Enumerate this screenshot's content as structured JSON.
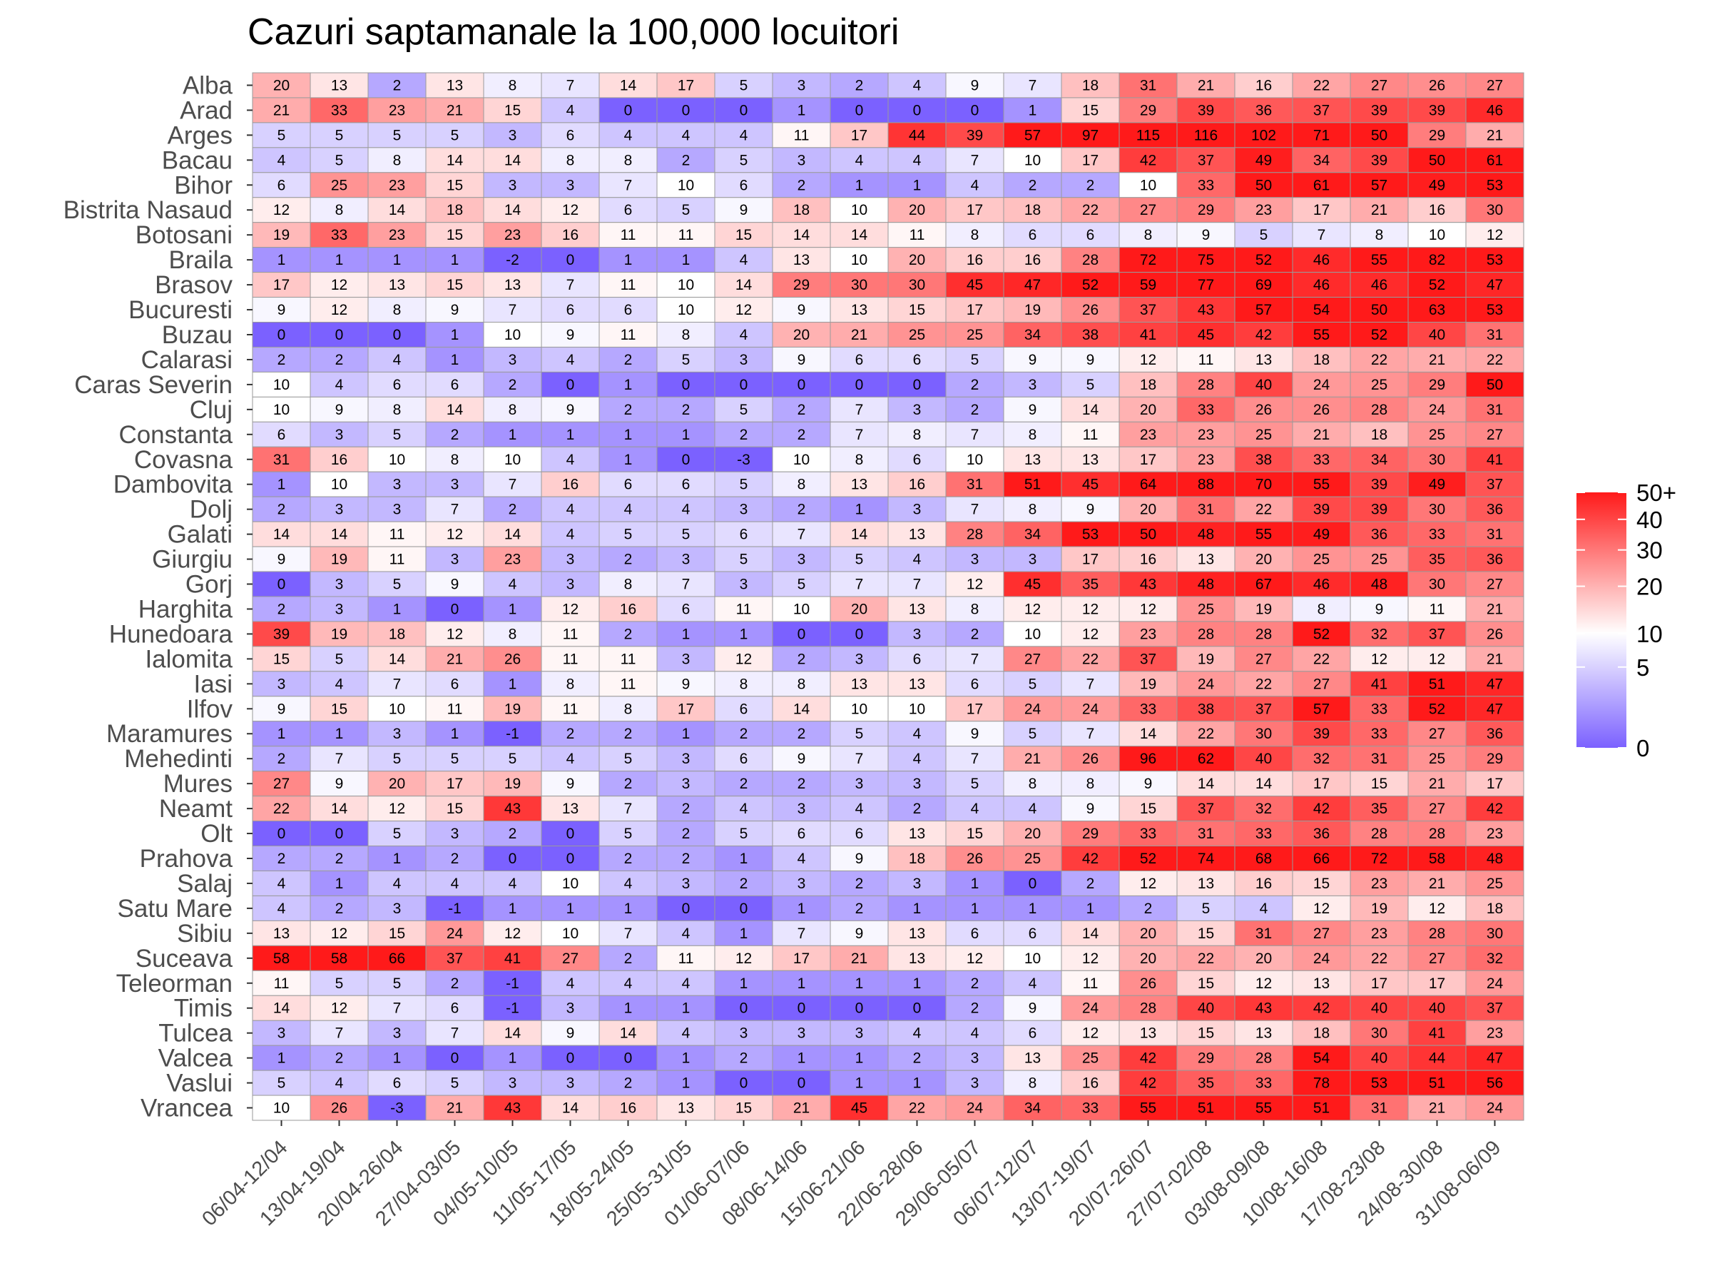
{
  "chart_data": {
    "type": "heatmap",
    "title": "Cazuri saptamanale la 100,000 locuitori",
    "xlabel": "",
    "ylabel": "",
    "x": [
      "06/04-12/04",
      "13/04-19/04",
      "20/04-26/04",
      "27/04-03/05",
      "04/05-10/05",
      "11/05-17/05",
      "18/05-24/05",
      "25/05-31/05",
      "01/06-07/06",
      "08/06-14/06",
      "15/06-21/06",
      "22/06-28/06",
      "29/06-05/07",
      "06/07-12/07",
      "13/07-19/07",
      "20/07-26/07",
      "27/07-02/08",
      "03/08-09/08",
      "10/08-16/08",
      "17/08-23/08",
      "24/08-30/08",
      "31/08-06/09"
    ],
    "y": [
      "Alba",
      "Arad",
      "Arges",
      "Bacau",
      "Bihor",
      "Bistrita Nasaud",
      "Botosani",
      "Braila",
      "Brasov",
      "Bucuresti",
      "Buzau",
      "Calarasi",
      "Caras Severin",
      "Cluj",
      "Constanta",
      "Covasna",
      "Dambovita",
      "Dolj",
      "Galati",
      "Giurgiu",
      "Gorj",
      "Harghita",
      "Hunedoara",
      "Ialomita",
      "Iasi",
      "Ilfov",
      "Maramures",
      "Mehedinti",
      "Mures",
      "Neamt",
      "Olt",
      "Prahova",
      "Salaj",
      "Satu Mare",
      "Sibiu",
      "Suceava",
      "Teleorman",
      "Timis",
      "Tulcea",
      "Valcea",
      "Vaslui",
      "Vrancea"
    ],
    "values": [
      [
        20,
        13,
        2,
        13,
        8,
        7,
        14,
        17,
        5,
        3,
        2,
        4,
        9,
        7,
        18,
        31,
        21,
        16,
        22,
        27,
        26,
        27
      ],
      [
        21,
        33,
        23,
        21,
        15,
        4,
        0,
        0,
        0,
        1,
        0,
        0,
        0,
        1,
        15,
        29,
        39,
        36,
        37,
        39,
        39,
        46
      ],
      [
        5,
        5,
        5,
        5,
        3,
        6,
        4,
        4,
        4,
        11,
        17,
        44,
        39,
        57,
        97,
        115,
        116,
        102,
        71,
        50,
        29,
        21
      ],
      [
        4,
        5,
        8,
        14,
        14,
        8,
        8,
        2,
        5,
        3,
        4,
        4,
        7,
        10,
        17,
        42,
        37,
        49,
        34,
        39,
        50,
        61
      ],
      [
        6,
        25,
        23,
        15,
        3,
        3,
        7,
        10,
        6,
        2,
        1,
        1,
        4,
        2,
        2,
        10,
        33,
        50,
        61,
        57,
        49,
        53
      ],
      [
        12,
        8,
        14,
        18,
        14,
        12,
        6,
        5,
        9,
        18,
        10,
        20,
        17,
        18,
        22,
        27,
        29,
        23,
        17,
        21,
        16,
        30
      ],
      [
        19,
        33,
        23,
        15,
        23,
        16,
        11,
        11,
        15,
        14,
        14,
        11,
        8,
        6,
        6,
        8,
        9,
        5,
        7,
        8,
        10,
        12
      ],
      [
        1,
        1,
        1,
        1,
        -2,
        0,
        1,
        1,
        4,
        13,
        10,
        20,
        16,
        16,
        28,
        72,
        75,
        52,
        46,
        55,
        82,
        53
      ],
      [
        17,
        12,
        13,
        15,
        13,
        7,
        11,
        10,
        14,
        29,
        30,
        30,
        45,
        47,
        52,
        59,
        77,
        69,
        46,
        46,
        52,
        47
      ],
      [
        9,
        12,
        8,
        9,
        7,
        6,
        6,
        10,
        12,
        9,
        13,
        15,
        17,
        19,
        26,
        37,
        43,
        57,
        54,
        50,
        63,
        53
      ],
      [
        0,
        0,
        0,
        1,
        10,
        9,
        11,
        8,
        4,
        20,
        21,
        25,
        25,
        34,
        38,
        41,
        45,
        42,
        55,
        52,
        40,
        31
      ],
      [
        2,
        2,
        4,
        1,
        3,
        4,
        2,
        5,
        3,
        9,
        6,
        6,
        5,
        9,
        9,
        12,
        11,
        13,
        18,
        22,
        21,
        22
      ],
      [
        10,
        4,
        6,
        6,
        2,
        0,
        1,
        0,
        0,
        0,
        0,
        0,
        2,
        3,
        5,
        18,
        28,
        40,
        24,
        25,
        29,
        50
      ],
      [
        10,
        9,
        8,
        14,
        8,
        9,
        2,
        2,
        5,
        2,
        7,
        3,
        2,
        9,
        14,
        20,
        33,
        26,
        26,
        28,
        24,
        31
      ],
      [
        6,
        3,
        5,
        2,
        1,
        1,
        1,
        1,
        2,
        2,
        7,
        8,
        7,
        8,
        11,
        23,
        23,
        25,
        21,
        18,
        25,
        27
      ],
      [
        31,
        16,
        10,
        8,
        10,
        4,
        1,
        0,
        -3,
        10,
        8,
        6,
        10,
        13,
        13,
        17,
        23,
        38,
        33,
        34,
        30,
        41
      ],
      [
        1,
        10,
        3,
        3,
        7,
        16,
        6,
        6,
        5,
        8,
        13,
        16,
        31,
        51,
        45,
        64,
        88,
        70,
        55,
        39,
        49,
        37
      ],
      [
        2,
        3,
        3,
        7,
        2,
        4,
        4,
        4,
        3,
        2,
        1,
        3,
        7,
        8,
        9,
        20,
        31,
        22,
        39,
        39,
        30,
        36
      ],
      [
        14,
        14,
        11,
        12,
        14,
        4,
        5,
        5,
        6,
        7,
        14,
        13,
        28,
        34,
        53,
        50,
        48,
        55,
        49,
        36,
        33,
        31
      ],
      [
        9,
        19,
        11,
        3,
        23,
        3,
        2,
        3,
        5,
        3,
        5,
        4,
        3,
        3,
        17,
        16,
        13,
        20,
        25,
        25,
        35,
        36
      ],
      [
        0,
        3,
        5,
        9,
        4,
        3,
        8,
        7,
        3,
        5,
        7,
        7,
        12,
        45,
        35,
        43,
        48,
        67,
        46,
        48,
        30,
        27
      ],
      [
        2,
        3,
        1,
        0,
        1,
        12,
        16,
        6,
        11,
        10,
        20,
        13,
        8,
        12,
        12,
        12,
        25,
        19,
        8,
        9,
        11,
        21
      ],
      [
        39,
        19,
        18,
        12,
        8,
        11,
        2,
        1,
        1,
        0,
        0,
        3,
        2,
        10,
        12,
        23,
        28,
        28,
        52,
        32,
        37,
        26
      ],
      [
        15,
        5,
        14,
        21,
        26,
        11,
        11,
        3,
        12,
        2,
        3,
        6,
        7,
        27,
        22,
        37,
        19,
        27,
        22,
        12,
        12,
        21
      ],
      [
        3,
        4,
        7,
        6,
        1,
        8,
        11,
        9,
        8,
        8,
        13,
        13,
        6,
        5,
        7,
        19,
        24,
        22,
        27,
        41,
        51,
        47
      ],
      [
        9,
        15,
        10,
        11,
        19,
        11,
        8,
        17,
        6,
        14,
        10,
        10,
        17,
        24,
        24,
        33,
        38,
        37,
        57,
        33,
        52,
        47
      ],
      [
        1,
        1,
        3,
        1,
        -1,
        2,
        2,
        1,
        2,
        2,
        5,
        4,
        9,
        5,
        7,
        14,
        22,
        30,
        39,
        33,
        27,
        36
      ],
      [
        2,
        7,
        5,
        5,
        5,
        4,
        5,
        3,
        6,
        9,
        7,
        4,
        7,
        21,
        26,
        96,
        62,
        40,
        32,
        31,
        25,
        29
      ],
      [
        27,
        9,
        20,
        17,
        19,
        9,
        2,
        3,
        2,
        2,
        3,
        3,
        5,
        8,
        8,
        9,
        14,
        14,
        17,
        15,
        21,
        17
      ],
      [
        22,
        14,
        12,
        15,
        43,
        13,
        7,
        2,
        4,
        3,
        4,
        2,
        4,
        4,
        9,
        15,
        37,
        32,
        42,
        35,
        27,
        42
      ],
      [
        0,
        0,
        5,
        3,
        2,
        0,
        5,
        2,
        5,
        6,
        6,
        13,
        15,
        20,
        29,
        33,
        31,
        33,
        36,
        28,
        28,
        23
      ],
      [
        2,
        2,
        1,
        2,
        0,
        0,
        2,
        2,
        1,
        4,
        9,
        18,
        26,
        25,
        42,
        52,
        74,
        68,
        66,
        72,
        58,
        48
      ],
      [
        4,
        1,
        4,
        4,
        4,
        10,
        4,
        3,
        2,
        3,
        2,
        3,
        1,
        0,
        2,
        12,
        13,
        16,
        15,
        23,
        21,
        25
      ],
      [
        4,
        2,
        3,
        -1,
        1,
        1,
        1,
        0,
        0,
        1,
        2,
        1,
        1,
        1,
        1,
        2,
        5,
        4,
        12,
        19,
        12,
        18
      ],
      [
        13,
        12,
        15,
        24,
        12,
        10,
        7,
        4,
        1,
        7,
        9,
        13,
        6,
        6,
        14,
        20,
        15,
        31,
        27,
        23,
        28,
        30
      ],
      [
        58,
        58,
        66,
        37,
        41,
        27,
        2,
        11,
        12,
        17,
        21,
        13,
        12,
        10,
        12,
        20,
        22,
        20,
        24,
        22,
        27,
        32
      ],
      [
        11,
        5,
        5,
        2,
        -1,
        4,
        4,
        4,
        1,
        1,
        1,
        1,
        2,
        4,
        11,
        26,
        15,
        12,
        13,
        17,
        17,
        24
      ],
      [
        14,
        12,
        7,
        6,
        -1,
        3,
        1,
        1,
        0,
        0,
        0,
        0,
        2,
        9,
        24,
        28,
        40,
        43,
        42,
        40,
        40,
        37
      ],
      [
        3,
        7,
        3,
        7,
        14,
        9,
        14,
        4,
        3,
        3,
        3,
        4,
        4,
        6,
        12,
        13,
        15,
        13,
        18,
        30,
        41,
        23
      ],
      [
        1,
        2,
        1,
        0,
        1,
        0,
        0,
        1,
        2,
        1,
        1,
        2,
        3,
        13,
        25,
        42,
        29,
        28,
        54,
        40,
        44,
        47
      ],
      [
        5,
        4,
        6,
        5,
        3,
        3,
        2,
        1,
        0,
        0,
        1,
        1,
        3,
        8,
        16,
        42,
        35,
        33,
        78,
        53,
        51,
        56
      ],
      [
        10,
        26,
        -3,
        21,
        43,
        14,
        16,
        13,
        15,
        21,
        45,
        22,
        24,
        34,
        33,
        55,
        51,
        55,
        51,
        31,
        21,
        24
      ]
    ],
    "color_scale": {
      "low_color": "#7b61ff",
      "mid_color": "#ffffff",
      "high_color": "#ff1a1a",
      "midpoint": 10,
      "max_clip": 50,
      "transform": "sqrt"
    },
    "legend": {
      "position": "right",
      "tick_labels": [
        "0",
        "5",
        "10",
        "20",
        "30",
        "40",
        "50+"
      ],
      "tick_values": [
        0,
        5,
        10,
        20,
        30,
        40,
        50
      ]
    }
  }
}
